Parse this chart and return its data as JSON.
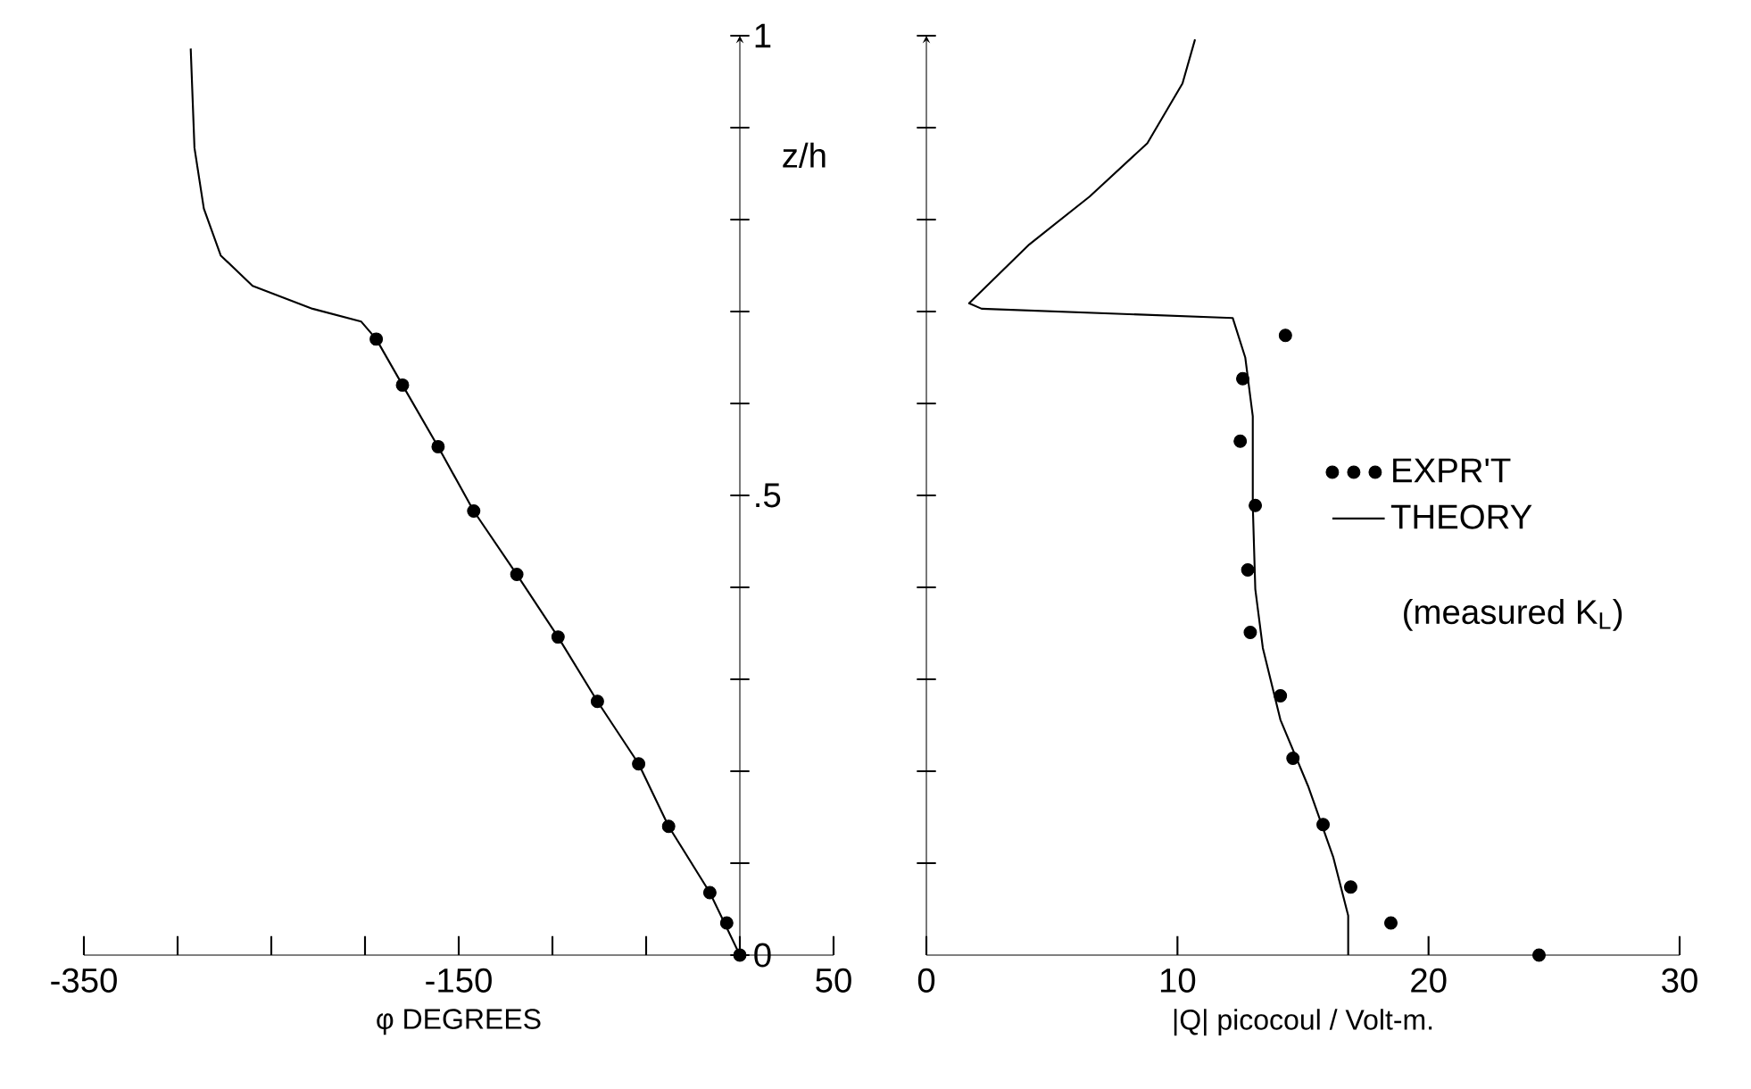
{
  "chart_data": [
    {
      "type": "line",
      "xlabel": "φ DEGREES",
      "ylabel": "z/h",
      "xlim": [
        -350,
        50
      ],
      "ylim": [
        0,
        1
      ],
      "xticks": [
        -350,
        {
          "value": -300,
          "label": null
        },
        {
          "value": -250,
          "label": null
        },
        {
          "value": -200,
          "label": null
        },
        -150,
        {
          "value": -100,
          "label": null
        },
        {
          "value": -50,
          "label": null
        },
        {
          "value": 0,
          "label": null
        },
        50
      ],
      "yticks": [
        0,
        {
          "value": 0.1,
          "label": null
        },
        {
          "value": 0.2,
          "label": null
        },
        {
          "value": 0.3,
          "label": null
        },
        {
          "value": 0.4,
          "label": null
        },
        {
          "value": 0.5,
          "label": ".5"
        },
        {
          "value": 0.6,
          "label": null
        },
        {
          "value": 0.7,
          "label": null
        },
        {
          "value": 0.8,
          "label": null
        },
        {
          "value": 0.9,
          "label": null
        },
        1
      ],
      "series": [
        {
          "type": "scatter",
          "color": "#000000",
          "marker": "circle",
          "x": [
            0,
            -7,
            -16,
            -38,
            -54,
            -76,
            -97,
            -119,
            -142,
            -161,
            -180,
            -194
          ],
          "values": [
            0,
            0.035,
            0.068,
            0.14,
            0.208,
            0.276,
            0.346,
            0.414,
            0.483,
            0.553,
            0.62,
            0.67
          ]
        },
        {
          "type": "line",
          "color": "#000000",
          "x": [
            0,
            -16,
            -38,
            -54,
            -76,
            -97,
            -119,
            -142,
            -161,
            -180,
            -194,
            -202,
            -228,
            -260,
            -277,
            -286,
            -291,
            -293
          ],
          "values": [
            0,
            0.068,
            0.14,
            0.208,
            0.276,
            0.346,
            0.414,
            0.483,
            0.553,
            0.62,
            0.67,
            0.689,
            0.703,
            0.728,
            0.761,
            0.812,
            0.878,
            0.986
          ]
        }
      ]
    },
    {
      "type": "line",
      "xlabel": "|Q| picocoul / Volt-m.",
      "xlim": [
        0,
        30
      ],
      "ylim": [
        0,
        1
      ],
      "xticks": [
        0,
        10,
        20,
        30
      ],
      "yticks": [
        0.1,
        0.2,
        0.3,
        0.4,
        0.5,
        0.6,
        0.7,
        0.8,
        0.9,
        1
      ],
      "tick_labels": "x",
      "legend": "right",
      "annotations": [
        "(measured K$_{L}$)"
      ],
      "series": [
        {
          "type": "scatter",
          "name": "EXPR'T",
          "color": "#000000",
          "marker": "circle",
          "x": [
            14.3,
            12.6,
            12.5,
            13.1,
            12.8,
            12.9,
            14.1,
            14.6,
            15.8,
            16.9,
            18.5,
            24.4
          ],
          "values": [
            0.674,
            0.627,
            0.559,
            0.489,
            0.419,
            0.351,
            0.282,
            0.214,
            0.142,
            0.074,
            0.035,
            0
          ]
        },
        {
          "type": "line",
          "name": "THEORY",
          "color": "#000000",
          "x": [
            10.7,
            10.2,
            8.8,
            6.5,
            4.1,
            1.7,
            2.2,
            12.2,
            12.7,
            13.0,
            13.0,
            13.1,
            13.4,
            14.1,
            15.2,
            16.2,
            16.8,
            16.8
          ],
          "values": [
            0.996,
            0.948,
            0.883,
            0.825,
            0.773,
            0.709,
            0.703,
            0.693,
            0.65,
            0.586,
            0.489,
            0.398,
            0.334,
            0.256,
            0.184,
            0.107,
            0.043,
            0
          ]
        }
      ]
    }
  ]
}
